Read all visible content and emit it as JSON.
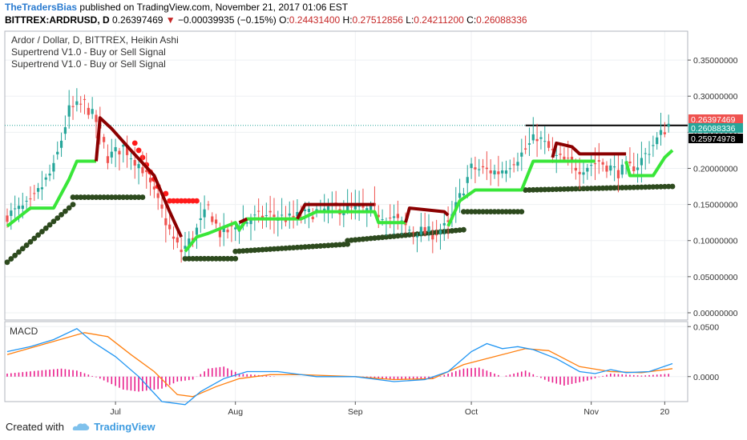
{
  "header": {
    "publisher": "TheTradersBias",
    "published_text": "published on TradingView.com, November 21, 2017 01:06 EST",
    "symbol": "BITTREX:ARDRUSD, D",
    "last": "0.26397469",
    "change": "−0.00039935 (−0.15%)",
    "ohlc": {
      "o_label": "O:",
      "o": "0.24431400",
      "h_label": "H:",
      "h": "0.27512856",
      "l_label": "L:",
      "l": "0.24211200",
      "c_label": "C:",
      "c": "0.26088336"
    }
  },
  "legend": {
    "title": "Ardor / Dollar, D, BITTREX, Heikin Ashi",
    "ind1": "Supertrend V1.0 - Buy or Sell Signal",
    "ind2": "Supertrend V1.0 - Buy or Sell Signal"
  },
  "macd_label": "MACD",
  "footer": {
    "created_with": "Created with",
    "brand": "TradingView"
  },
  "colors": {
    "bull": "#26a69a",
    "bear": "#ef5350",
    "st_up": "#39e639",
    "st_down": "#8b0000",
    "st_dots": "#2d4a1e",
    "st_dots_red": "#ff1a1a",
    "macd": "#2196f3",
    "signal": "#ff7f0e",
    "hist": "#e91e8c",
    "hline": "#000000"
  },
  "chart_data": [
    {
      "type": "candlestick",
      "title": "Ardor / Dollar, D, BITTREX, Heikin Ashi",
      "ylim": [
        -0.01,
        0.39
      ],
      "y_ticks": [
        "0.35000000",
        "0.30000000",
        "0.25000000",
        "0.20000000",
        "0.15000000",
        "0.10000000",
        "0.05000000",
        "0.00000000"
      ],
      "y_tick_values": [
        0.35,
        0.3,
        0.25,
        0.2,
        0.15,
        0.1,
        0.05,
        0.0
      ],
      "x_ticks": [
        {
          "label": "Jul",
          "day": 28
        },
        {
          "label": "Aug",
          "day": 59
        },
        {
          "label": "Sep",
          "day": 90
        },
        {
          "label": "Oct",
          "day": 120
        },
        {
          "label": "Nov",
          "day": 151
        },
        {
          "label": "20",
          "day": 170
        }
      ],
      "x_range": [
        0,
        172
      ],
      "price_tags": [
        {
          "value": 0.26397469,
          "text": "0.26397469",
          "color": "#ef5350"
        },
        {
          "value": 0.26088336,
          "text": "0.26088336",
          "color": "#26a69a"
        },
        {
          "value": 0.25974978,
          "text": "0.25974978",
          "color": "#000000"
        }
      ],
      "horizontal_line": {
        "value": 0.2595,
        "from_day": 134,
        "to_day": 172
      },
      "dotted_line": 0.2595,
      "anchors": [
        [
          0,
          0.135
        ],
        [
          6,
          0.15
        ],
        [
          12,
          0.2
        ],
        [
          16,
          0.28
        ],
        [
          20,
          0.29
        ],
        [
          23,
          0.265
        ],
        [
          26,
          0.215
        ],
        [
          30,
          0.23
        ],
        [
          35,
          0.2
        ],
        [
          40,
          0.14
        ],
        [
          43,
          0.1
        ],
        [
          45,
          0.085
        ],
        [
          48,
          0.105
        ],
        [
          52,
          0.145
        ],
        [
          55,
          0.11
        ],
        [
          58,
          0.115
        ],
        [
          63,
          0.13
        ],
        [
          68,
          0.135
        ],
        [
          73,
          0.13
        ],
        [
          80,
          0.14
        ],
        [
          85,
          0.145
        ],
        [
          95,
          0.14
        ],
        [
          100,
          0.13
        ],
        [
          104,
          0.115
        ],
        [
          110,
          0.11
        ],
        [
          114,
          0.12
        ],
        [
          120,
          0.2
        ],
        [
          127,
          0.195
        ],
        [
          133,
          0.22
        ],
        [
          137,
          0.245
        ],
        [
          142,
          0.215
        ],
        [
          148,
          0.2
        ],
        [
          153,
          0.21
        ],
        [
          158,
          0.195
        ],
        [
          163,
          0.205
        ],
        [
          168,
          0.24
        ],
        [
          171,
          0.261
        ]
      ],
      "supertrend_up": [
        {
          "points": [
            [
              0,
              0.12
            ],
            [
              6,
              0.145
            ],
            [
              12,
              0.145
            ],
            [
              16,
              0.185
            ],
            [
              18,
              0.21
            ],
            [
              23,
              0.21
            ]
          ]
        },
        {
          "points": [
            [
              46,
              0.085
            ],
            [
              49,
              0.105
            ],
            [
              52,
              0.11
            ],
            [
              59,
              0.125
            ],
            [
              60,
              0.115
            ],
            [
              62,
              0.13
            ],
            [
              76,
              0.13
            ],
            [
              80,
              0.14
            ],
            [
              95,
              0.14
            ],
            [
              96,
              0.125
            ],
            [
              103,
              0.125
            ]
          ]
        },
        {
          "points": [
            [
              114,
              0.12
            ],
            [
              117,
              0.155
            ],
            [
              121,
              0.17
            ],
            [
              133,
              0.17
            ],
            [
              136,
              0.21
            ],
            [
              152,
              0.21
            ]
          ]
        },
        {
          "points": [
            [
              160,
              0.21
            ],
            [
              161,
              0.19
            ],
            [
              167,
              0.19
            ],
            [
              170,
              0.215
            ],
            [
              172,
              0.225
            ]
          ]
        }
      ],
      "supertrend_down": [
        {
          "points": [
            [
              23,
              0.21
            ],
            [
              24,
              0.27
            ],
            [
              27,
              0.255
            ],
            [
              32,
              0.225
            ],
            [
              38,
              0.19
            ],
            [
              42,
              0.14
            ],
            [
              45,
              0.105
            ]
          ]
        },
        {
          "points": [
            [
              60,
              0.125
            ],
            [
              62,
              0.13
            ]
          ]
        },
        {
          "points": [
            [
              75,
              0.13
            ],
            [
              77,
              0.15
            ],
            [
              95,
              0.15
            ]
          ]
        },
        {
          "points": [
            [
              103,
              0.125
            ],
            [
              104,
              0.145
            ],
            [
              113,
              0.14
            ],
            [
              114,
              0.135
            ]
          ]
        },
        {
          "points": [
            [
              141,
              0.215
            ],
            [
              142,
              0.235
            ],
            [
              146,
              0.23
            ],
            [
              148,
              0.22
            ],
            [
              160,
              0.22
            ]
          ]
        }
      ],
      "supertrend_dots": [
        {
          "from": 0,
          "to": 17,
          "start": 0.07,
          "end": 0.15
        },
        {
          "from": 17,
          "to": 35,
          "start": 0.16,
          "end": 0.16
        },
        {
          "from": 46,
          "to": 59,
          "start": 0.075,
          "end": 0.075
        },
        {
          "from": 59,
          "to": 88,
          "start": 0.085,
          "end": 0.095
        },
        {
          "from": 88,
          "to": 118,
          "start": 0.1,
          "end": 0.115
        },
        {
          "from": 118,
          "to": 133,
          "start": 0.14,
          "end": 0.14
        },
        {
          "from": 134,
          "to": 172,
          "start": 0.17,
          "end": 0.175
        }
      ],
      "supertrend_dots_red": [
        [
          33,
          0.235
        ],
        [
          34,
          0.225
        ],
        [
          35,
          0.215
        ],
        [
          36,
          0.205
        ],
        [
          37,
          0.195
        ],
        [
          38,
          0.185
        ],
        [
          39,
          0.175
        ],
        [
          41,
          0.165
        ],
        [
          42,
          0.155
        ],
        [
          43,
          0.155
        ],
        [
          44,
          0.155
        ],
        [
          45,
          0.155
        ],
        [
          46,
          0.155
        ],
        [
          47,
          0.155
        ],
        [
          48,
          0.155
        ],
        [
          49,
          0.155
        ]
      ]
    },
    {
      "type": "macd",
      "title": "MACD",
      "ylim": [
        -0.025,
        0.055
      ],
      "y_ticks": [
        "0.0500",
        "0.0000"
      ],
      "y_tick_values": [
        0.05,
        0.0
      ],
      "macd": [
        [
          0,
          0.025
        ],
        [
          6,
          0.03
        ],
        [
          12,
          0.037
        ],
        [
          18,
          0.048
        ],
        [
          22,
          0.035
        ],
        [
          28,
          0.02
        ],
        [
          34,
          0.0
        ],
        [
          40,
          -0.025
        ],
        [
          46,
          -0.028
        ],
        [
          50,
          -0.015
        ],
        [
          56,
          -0.002
        ],
        [
          62,
          0.005
        ],
        [
          70,
          0.005
        ],
        [
          80,
          0.0
        ],
        [
          90,
          0.0
        ],
        [
          100,
          -0.005
        ],
        [
          108,
          -0.003
        ],
        [
          114,
          0.005
        ],
        [
          120,
          0.025
        ],
        [
          124,
          0.033
        ],
        [
          128,
          0.028
        ],
        [
          132,
          0.03
        ],
        [
          136,
          0.027
        ],
        [
          142,
          0.018
        ],
        [
          148,
          0.005
        ],
        [
          152,
          0.003
        ],
        [
          156,
          0.007
        ],
        [
          160,
          0.004
        ],
        [
          166,
          0.005
        ],
        [
          172,
          0.013
        ]
      ],
      "signal": [
        [
          0,
          0.022
        ],
        [
          10,
          0.033
        ],
        [
          20,
          0.044
        ],
        [
          26,
          0.04
        ],
        [
          32,
          0.022
        ],
        [
          38,
          0.005
        ],
        [
          44,
          -0.018
        ],
        [
          48,
          -0.02
        ],
        [
          54,
          -0.01
        ],
        [
          60,
          -0.002
        ],
        [
          68,
          0.002
        ],
        [
          76,
          0.002
        ],
        [
          90,
          0.0
        ],
        [
          100,
          -0.003
        ],
        [
          110,
          -0.002
        ],
        [
          118,
          0.012
        ],
        [
          126,
          0.02
        ],
        [
          134,
          0.028
        ],
        [
          140,
          0.026
        ],
        [
          148,
          0.01
        ],
        [
          156,
          0.005
        ],
        [
          164,
          0.004
        ],
        [
          172,
          0.008
        ]
      ],
      "hist_amplitudes": [
        [
          0,
          0.003
        ],
        [
          8,
          0.006
        ],
        [
          14,
          0.008
        ],
        [
          18,
          0.006
        ],
        [
          24,
          -0.002
        ],
        [
          30,
          -0.013
        ],
        [
          34,
          -0.015
        ],
        [
          40,
          -0.012
        ],
        [
          44,
          -0.005
        ],
        [
          48,
          -0.003
        ],
        [
          52,
          0.008
        ],
        [
          56,
          0.01
        ],
        [
          60,
          0.003
        ],
        [
          70,
          0.0
        ],
        [
          90,
          0.0
        ],
        [
          100,
          -0.003
        ],
        [
          110,
          -0.002
        ],
        [
          118,
          0.008
        ],
        [
          122,
          0.009
        ],
        [
          128,
          0.0
        ],
        [
          134,
          0.006
        ],
        [
          140,
          -0.005
        ],
        [
          144,
          -0.009
        ],
        [
          150,
          -0.004
        ],
        [
          156,
          0.003
        ],
        [
          164,
          0.001
        ],
        [
          172,
          0.003
        ]
      ]
    }
  ]
}
